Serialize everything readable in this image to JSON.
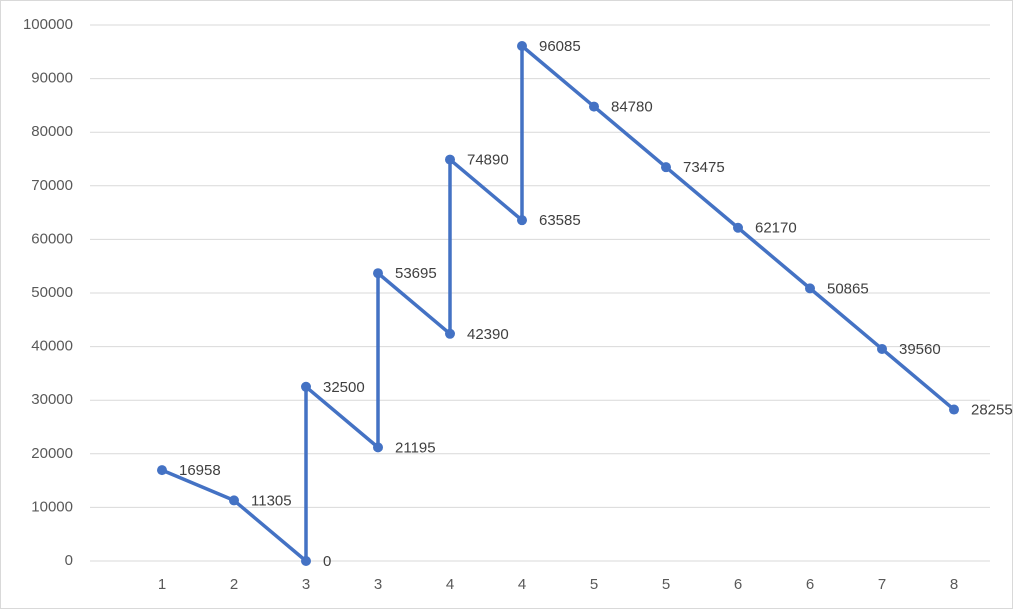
{
  "chart_data": {
    "type": "line",
    "x": [
      1,
      2,
      3,
      3,
      4,
      4,
      5,
      5,
      6,
      6,
      7,
      8,
      9,
      10,
      11,
      12
    ],
    "series": [
      {
        "color": "#4472c4",
        "values": [
          16958,
          11305,
          0,
          32500,
          21195,
          53695,
          42390,
          74890,
          63585,
          96085,
          84780,
          73475,
          62170,
          50865,
          39560,
          28255
        ]
      }
    ],
    "xlim": [
      0,
      12.5
    ],
    "xticks": [
      {
        "value": 1,
        "label": "1"
      },
      {
        "value": 2,
        "label": "2"
      },
      {
        "value": 3,
        "label": "3"
      },
      {
        "value": 4,
        "label": "3"
      },
      {
        "value": 5,
        "label": "4"
      },
      {
        "value": 6,
        "label": "4"
      },
      {
        "value": 7,
        "label": "5"
      },
      {
        "value": 8,
        "label": "5"
      },
      {
        "value": 9,
        "label": "6"
      },
      {
        "value": 10,
        "label": "6"
      },
      {
        "value": 11,
        "label": "7"
      },
      {
        "value": 12,
        "label": "8"
      }
    ],
    "ylim": [
      0,
      100000
    ],
    "yticks": [
      0,
      10000,
      20000,
      30000,
      40000,
      50000,
      60000,
      70000,
      80000,
      90000,
      100000
    ],
    "grid": true,
    "data_labels": true
  }
}
